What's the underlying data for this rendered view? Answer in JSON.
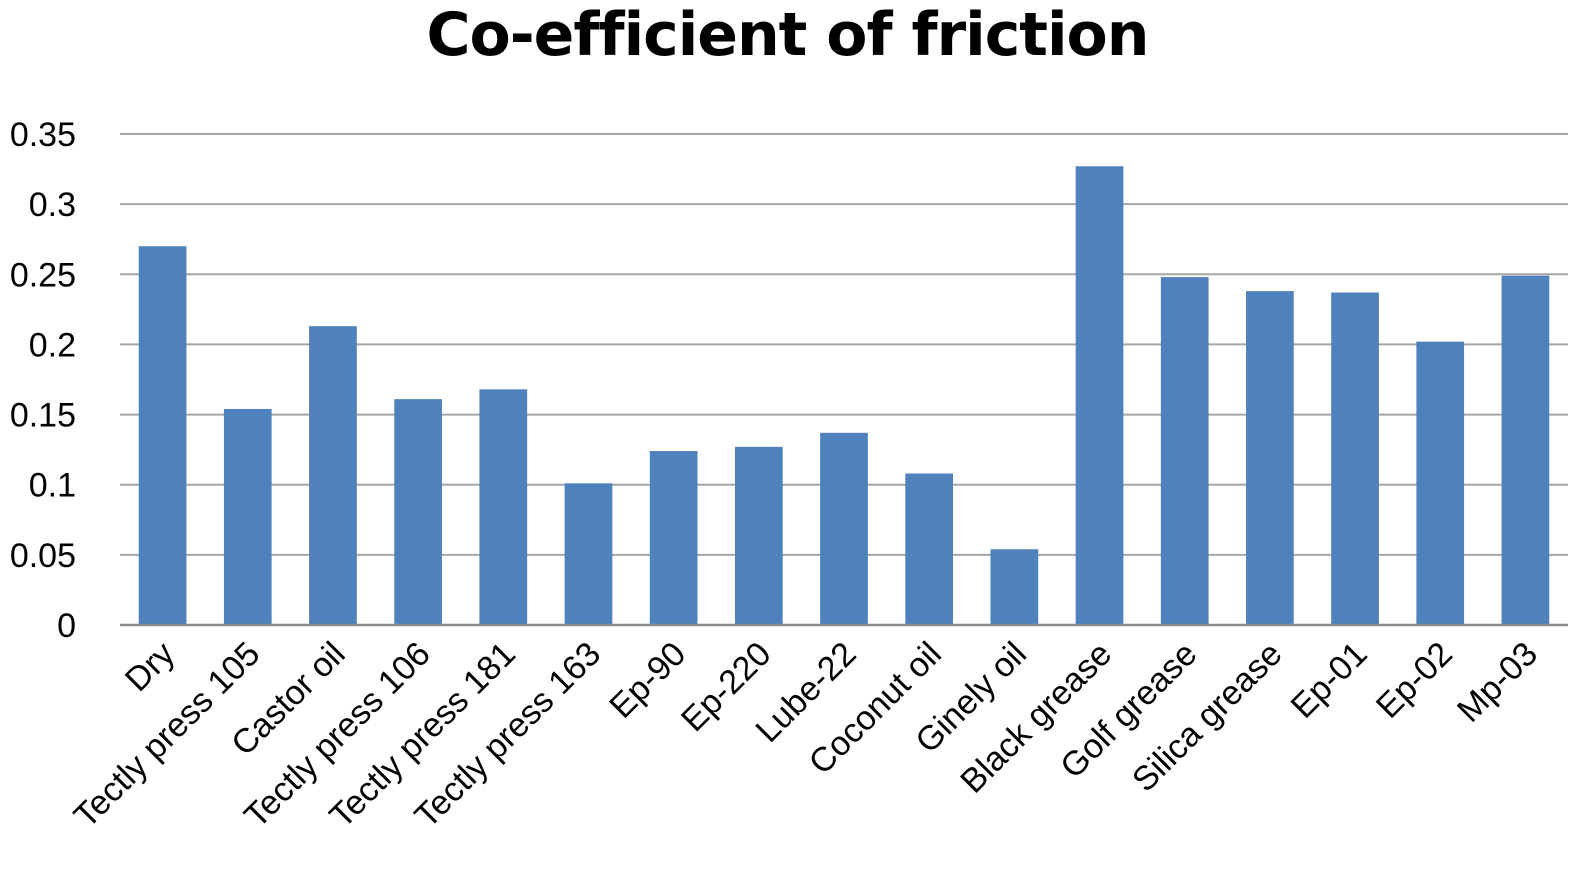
{
  "chart_data": {
    "type": "bar",
    "title": "Co-efficient of friction",
    "xlabel": "",
    "ylabel": "",
    "categories": [
      "Dry",
      "Tectly press 105",
      "Castor oil",
      "Tectly press 106",
      "Tectly press 181",
      "Tectly press 163",
      "Ep-90",
      "Ep-220",
      "Lube-22",
      "Coconut oil",
      "Ginely oil",
      "Black grease",
      "Golf grease",
      "Silica grease",
      "Ep-01",
      "Ep-02",
      "Mp-03"
    ],
    "values": [
      0.27,
      0.154,
      0.213,
      0.161,
      0.168,
      0.101,
      0.124,
      0.127,
      0.137,
      0.108,
      0.054,
      0.327,
      0.248,
      0.238,
      0.237,
      0.202,
      0.249
    ],
    "ylim": [
      0,
      0.35
    ],
    "yticks": [
      "0",
      "0.05",
      "0.1",
      "0.15",
      "0.2",
      "0.25",
      "0.3",
      "0.35"
    ],
    "grid": true,
    "legend": "none",
    "bar_color": "#4F81BD",
    "grid_color": "#A6A6A6"
  }
}
